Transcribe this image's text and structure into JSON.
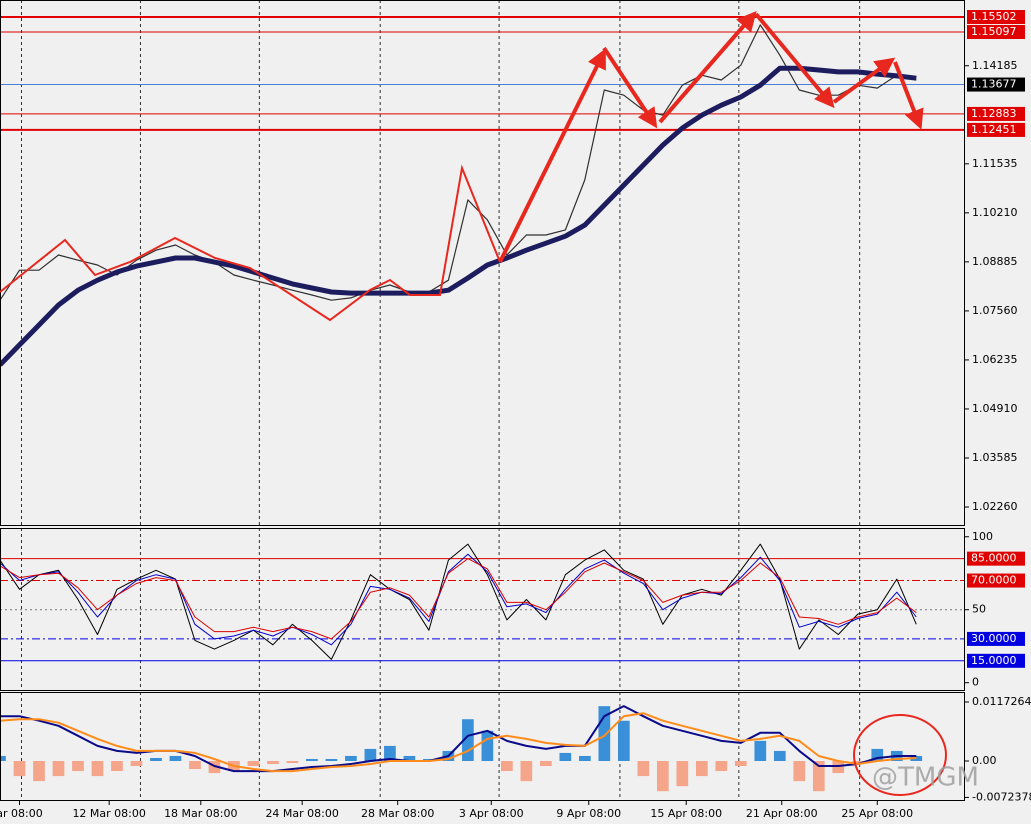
{
  "chart_data": [
    {
      "type": "line",
      "ylim": [
        1.01774,
        1.15962
      ],
      "yticks": [
        1.14185,
        1.11535,
        {
          "value": 1.1021,
          "label": "1.10210"
        },
        1.08885,
        {
          "value": 1.0756,
          "label": "1.07560"
        },
        1.06235,
        {
          "value": 1.0491,
          "label": "1.04910"
        },
        1.03585,
        {
          "value": 1.0226,
          "label": "1.02260"
        }
      ],
      "levels": [
        1.15502,
        1.15097,
        1.12883,
        1.12451
      ],
      "level_color": "#e00000",
      "current": 1.13677,
      "current_color": "#4a7fd8",
      "series": [
        {
          "color": "#303030",
          "width": 1.2,
          "values": [
            1.0785,
            1.0866,
            1.0866,
            1.0907,
            1.0893,
            1.088,
            1.0853,
            1.0893,
            1.092,
            1.0934,
            1.0907,
            1.0888,
            1.0853,
            1.0839,
            1.0826,
            1.0812,
            1.0799,
            1.0785,
            1.0791,
            1.0812,
            1.0826,
            1.0807,
            1.0807,
            1.0839,
            1.1056,
            1.1002,
            1.0907,
            1.0961,
            1.0961,
            1.0975,
            1.111,
            1.1353,
            1.1339,
            1.1299,
            1.1285,
            1.1366,
            1.1393,
            1.138,
            1.142,
            1.1529,
            1.1447,
            1.1353,
            1.1339,
            1.1339,
            1.1366,
            1.1358,
            1.1393,
            1.138
          ]
        },
        {
          "color": "#1c1c5e",
          "width": 5,
          "values": [
            1.061,
            1.0664,
            1.0718,
            1.0772,
            1.0812,
            1.0839,
            1.0861,
            1.0877,
            1.0888,
            1.0899,
            1.0899,
            1.0888,
            1.0877,
            1.0861,
            1.0845,
            1.0829,
            1.0818,
            1.0807,
            1.0804,
            1.0804,
            1.0804,
            1.0804,
            1.0804,
            1.0812,
            1.0845,
            1.088,
            1.0899,
            1.092,
            1.0939,
            1.0958,
            1.0988,
            1.1042,
            1.1096,
            1.115,
            1.1204,
            1.125,
            1.1285,
            1.1312,
            1.1334,
            1.1366,
            1.1412,
            1.1412,
            1.1407,
            1.1402,
            1.1402,
            1.1396,
            1.1391,
            1.1385
          ]
        }
      ]
    },
    {
      "type": "line",
      "ylim": [
        -5,
        106
      ],
      "yticks": [
        100,
        50,
        0
      ],
      "midline": 50,
      "levels": [
        {
          "value": 85,
          "label": "85.0000",
          "color": "#e00000",
          "style": "solid"
        },
        {
          "value": 70,
          "label": "70.0000",
          "color": "#e00000",
          "style": "dashdot"
        },
        {
          "value": 30,
          "label": "30.0000",
          "color": "#0000e0",
          "style": "dashdot"
        },
        {
          "value": 15,
          "label": "15.0000",
          "color": "#0000e0",
          "style": "solid"
        }
      ],
      "series": [
        {
          "color": "#000000",
          "values": [
            84,
            64,
            74,
            77,
            57,
            33,
            64,
            71,
            77,
            71,
            29,
            23,
            29,
            36,
            26,
            40,
            29,
            16,
            43,
            74,
            64,
            57,
            36,
            84,
            95,
            74,
            43,
            57,
            43,
            74,
            84,
            91,
            77,
            71,
            40,
            60,
            64,
            60,
            77,
            95,
            71,
            23,
            43,
            33,
            47,
            50,
            71,
            40
          ]
        },
        {
          "color": "#0000cc",
          "values": [
            82,
            70,
            74,
            76,
            62,
            45,
            60,
            70,
            74,
            71,
            40,
            30,
            32,
            36,
            32,
            38,
            33,
            26,
            40,
            66,
            64,
            58,
            42,
            76,
            88,
            76,
            52,
            54,
            48,
            64,
            78,
            84,
            75,
            68,
            50,
            58,
            62,
            61,
            72,
            86,
            70,
            38,
            42,
            38,
            44,
            47,
            62,
            45
          ]
        },
        {
          "color": "#dd0000",
          "values": [
            80,
            72,
            74,
            75,
            65,
            50,
            60,
            68,
            72,
            70,
            45,
            35,
            35,
            38,
            35,
            38,
            35,
            30,
            42,
            62,
            65,
            60,
            45,
            75,
            85,
            78,
            55,
            55,
            50,
            62,
            76,
            82,
            76,
            70,
            55,
            60,
            62,
            62,
            70,
            82,
            72,
            45,
            44,
            40,
            45,
            48,
            58,
            48
          ]
        }
      ]
    },
    {
      "type": "macd",
      "ylim": [
        -0.00775,
        0.01371
      ],
      "yticks": [
        0.0117264,
        {
          "value": 0,
          "label": "0.00"
        },
        -0.0072378
      ],
      "xlim": [
        0,
        49.5
      ],
      "xticks": [
        {
          "value": 1.0,
          "label": "ar 08:00"
        },
        {
          "value": 5.6,
          "label": "12 Mar 08:00"
        },
        {
          "value": 10.3,
          "label": "18 Mar 08:00"
        },
        {
          "value": 15.5,
          "label": "24 Mar 08:00"
        },
        {
          "value": 20.4,
          "label": "28 Mar 08:00"
        },
        {
          "value": 25.2,
          "label": "3 Apr 08:00"
        },
        {
          "value": 30.2,
          "label": "9 Apr 08:00"
        },
        {
          "value": 35.2,
          "label": "15 Apr 08:00"
        },
        {
          "value": 40.1,
          "label": "21 Apr 08:00"
        },
        {
          "value": 45.0,
          "label": "25 Apr 08:00"
        }
      ],
      "vgrid": [
        1.1,
        7.2,
        13.3,
        19.5,
        25.6,
        31.8,
        37.9,
        44.1
      ],
      "histogram": {
        "color": "#3a8fd9",
        "negative_color": "#f4a58a",
        "values": [
          0.001,
          -0.003,
          -0.004,
          -0.003,
          -0.002,
          -0.003,
          -0.002,
          -0.001,
          0.0006,
          0.001,
          -0.0016,
          -0.0024,
          -0.002,
          -0.001,
          -0.0006,
          -0.0004,
          0.0004,
          0.0004,
          0.001,
          0.0024,
          0.003,
          0.001,
          0.0004,
          0.002,
          0.0083,
          0.006,
          -0.002,
          -0.004,
          -0.001,
          0.0016,
          0.001,
          0.0109,
          0.008,
          -0.003,
          -0.006,
          -0.005,
          -0.003,
          -0.002,
          -0.001,
          0.004,
          0.002,
          -0.004,
          -0.006,
          -0.0024,
          -0.0004,
          0.0024,
          0.002,
          0.001
        ]
      },
      "series": [
        {
          "color": "#0a0a8a",
          "width": 2,
          "values": [
            0.0089,
            0.0089,
            0.008,
            0.007,
            0.005,
            0.003,
            0.002,
            0.0016,
            0.002,
            0.002,
            0.001,
            -0.001,
            -0.002,
            -0.002,
            -0.002,
            -0.0016,
            -0.0012,
            -0.001,
            -0.0006,
            0,
            0.0004,
            0,
            0,
            0.001,
            0.005,
            0.006,
            0.004,
            0.003,
            0.0024,
            0.003,
            0.003,
            0.0089,
            0.0109,
            0.0089,
            0.007,
            0.006,
            0.005,
            0.004,
            0.0036,
            0.0056,
            0.0056,
            0.002,
            -0.001,
            -0.001,
            -0.0006,
            0.0006,
            0.001,
            0.001
          ]
        },
        {
          "color": "#ff8c1a",
          "width": 2,
          "values": [
            0.008,
            0.0083,
            0.0083,
            0.0076,
            0.006,
            0.0044,
            0.003,
            0.002,
            0.002,
            0.002,
            0.0016,
            0.0004,
            -0.001,
            -0.0016,
            -0.002,
            -0.002,
            -0.0016,
            -0.0012,
            -0.001,
            -0.0006,
            0,
            0,
            0,
            0.0004,
            0.002,
            0.0044,
            0.005,
            0.0044,
            0.0036,
            0.0032,
            0.003,
            0.005,
            0.0089,
            0.0095,
            0.008,
            0.007,
            0.006,
            0.005,
            0.004,
            0.0044,
            0.005,
            0.004,
            0.001,
            0,
            -0.0006,
            0,
            0.0004,
            0.0006
          ]
        }
      ]
    },
    {
      "type": "annotation",
      "watermark": "@TMGM"
    }
  ]
}
